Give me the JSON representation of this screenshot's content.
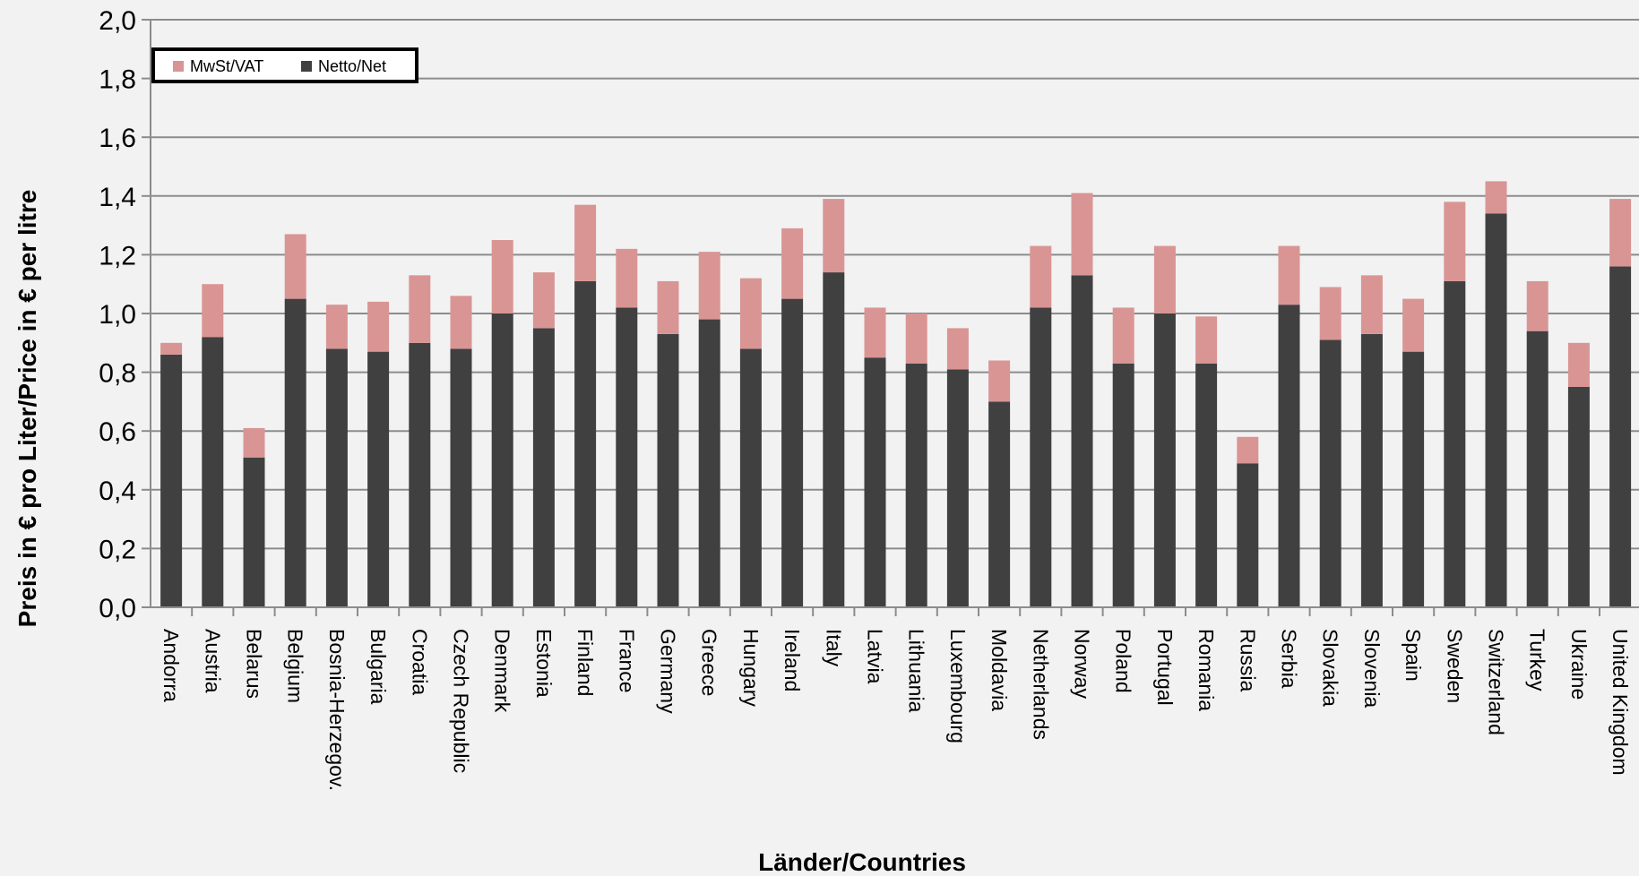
{
  "chart_data": {
    "type": "bar",
    "stacked": true,
    "title": "",
    "xlabel": "Länder/Countries",
    "ylabel": "Preis in € pro Liter/Price in € per litre",
    "ylim": [
      0,
      2.0
    ],
    "ytick_step": 0.2,
    "ytick_labels": [
      "0,0",
      "0,2",
      "0,4",
      "0,6",
      "0,8",
      "1,0",
      "1,2",
      "1,4",
      "1,6",
      "1,8",
      "2,0"
    ],
    "grid": true,
    "legend_position": "top-left",
    "categories": [
      "Andorra",
      "Austria",
      "Belarus",
      "Belgium",
      "Bosnia-Herzegov.",
      "Bulgaria",
      "Croatia",
      "Czech Republic",
      "Denmark",
      "Estonia",
      "Finland",
      "France",
      "Germany",
      "Greece",
      "Hungary",
      "Ireland",
      "Italy",
      "Latvia",
      "Lithuania",
      "Luxembourg",
      "Moldavia",
      "Netherlands",
      "Norway",
      "Poland",
      "Portugal",
      "Romania",
      "Russia",
      "Serbia",
      "Slovakia",
      "Slovenia",
      "Spain",
      "Sweden",
      "Switzerland",
      "Turkey",
      "Ukraine",
      "United Kingdom"
    ],
    "series": [
      {
        "name": "Netto/Net",
        "color": "#404040",
        "values": [
          0.86,
          0.92,
          0.51,
          1.05,
          0.88,
          0.87,
          0.9,
          0.88,
          1.0,
          0.95,
          1.11,
          1.02,
          0.93,
          0.98,
          0.88,
          1.05,
          1.14,
          0.85,
          0.83,
          0.81,
          0.7,
          1.02,
          1.13,
          0.83,
          1.0,
          0.83,
          0.49,
          1.03,
          0.91,
          0.93,
          0.87,
          1.11,
          1.34,
          0.94,
          0.75,
          1.16
        ]
      },
      {
        "name": "MwSt/VAT",
        "color": "#d99594",
        "values": [
          0.04,
          0.18,
          0.1,
          0.22,
          0.15,
          0.17,
          0.23,
          0.18,
          0.25,
          0.19,
          0.26,
          0.2,
          0.18,
          0.23,
          0.24,
          0.24,
          0.25,
          0.17,
          0.17,
          0.14,
          0.14,
          0.21,
          0.28,
          0.19,
          0.23,
          0.16,
          0.09,
          0.2,
          0.18,
          0.2,
          0.18,
          0.27,
          0.11,
          0.17,
          0.15,
          0.23
        ]
      }
    ],
    "legend": [
      {
        "label": "MwSt/VAT",
        "color": "#d99594"
      },
      {
        "label": "Netto/Net",
        "color": "#404040"
      }
    ]
  }
}
